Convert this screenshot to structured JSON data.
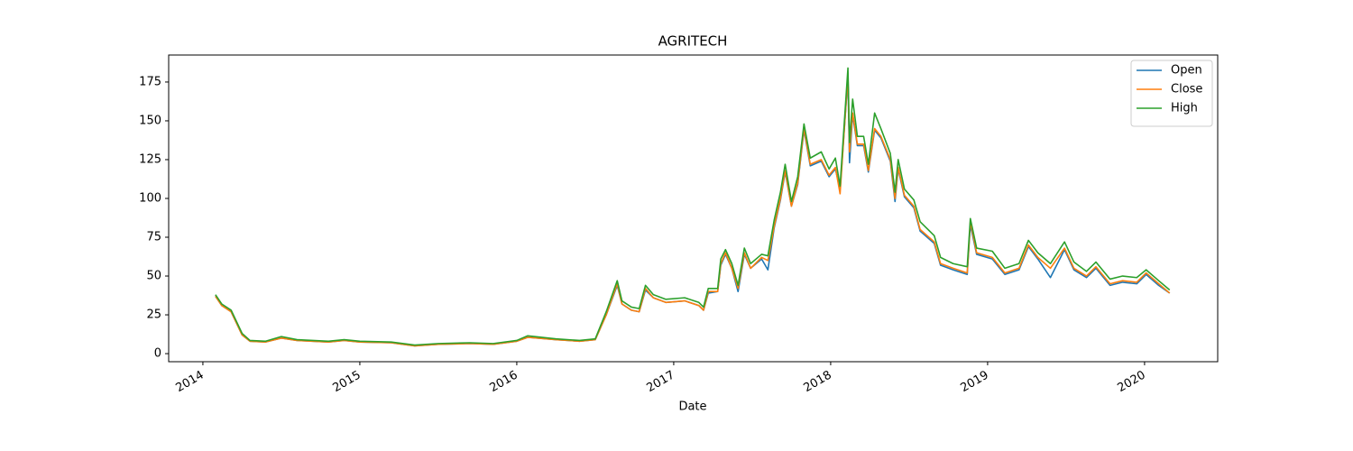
{
  "chart_data": {
    "type": "line",
    "title": "AGRITECH",
    "xlabel": "Date",
    "x": [
      2014.08,
      2014.12,
      2014.18,
      2014.25,
      2014.3,
      2014.4,
      2014.5,
      2014.6,
      2014.8,
      2014.9,
      2015.0,
      2015.2,
      2015.35,
      2015.5,
      2015.7,
      2015.85,
      2016.0,
      2016.07,
      2016.25,
      2016.4,
      2016.5,
      2016.57,
      2016.64,
      2016.67,
      2016.73,
      2016.78,
      2016.82,
      2016.87,
      2016.95,
      2017.07,
      2017.16,
      2017.19,
      2017.22,
      2017.28,
      2017.3,
      2017.33,
      2017.37,
      2017.41,
      2017.45,
      2017.49,
      2017.56,
      2017.6,
      2017.64,
      2017.68,
      2017.71,
      2017.75,
      2017.79,
      2017.83,
      2017.87,
      2017.94,
      2017.99,
      2018.03,
      2018.06,
      2018.11,
      2018.12,
      2018.14,
      2018.17,
      2018.21,
      2018.24,
      2018.28,
      2018.32,
      2018.38,
      2018.41,
      2018.43,
      2018.47,
      2018.53,
      2018.57,
      2018.66,
      2018.7,
      2018.78,
      2018.87,
      2018.89,
      2018.93,
      2019.03,
      2019.11,
      2019.2,
      2019.26,
      2019.32,
      2019.4,
      2019.49,
      2019.55,
      2019.63,
      2019.69,
      2019.78,
      2019.86,
      2019.95,
      2020.01,
      2020.09,
      2020.16
    ],
    "series": [
      {
        "name": "Open",
        "color": "#1f77b4",
        "values": [
          37,
          31,
          27,
          12,
          8,
          7.5,
          10,
          8.5,
          7.5,
          8.5,
          7.5,
          7,
          5,
          6,
          6.5,
          6,
          8,
          10.5,
          9,
          8,
          9,
          25,
          44,
          32,
          28,
          27,
          41,
          36,
          33,
          34,
          31,
          28,
          39,
          40,
          57,
          64,
          55,
          40,
          64,
          55,
          61,
          54,
          81,
          99,
          117,
          95,
          109,
          144,
          121,
          124,
          114,
          119,
          106,
          178,
          123,
          154,
          134,
          134,
          117,
          144,
          139,
          124,
          98,
          119,
          101,
          94,
          79,
          71,
          57,
          54,
          51,
          83,
          64,
          61,
          51,
          54,
          69,
          61,
          49,
          67,
          54,
          49,
          55,
          44,
          46,
          45,
          51,
          44,
          39
        ]
      },
      {
        "name": "Close",
        "color": "#ff7f0e",
        "values": [
          37,
          31,
          27,
          12,
          8,
          7.5,
          10,
          8.5,
          7.5,
          8.5,
          7.5,
          7,
          5,
          6,
          6.5,
          6,
          8,
          10.5,
          9,
          8,
          9,
          25,
          45,
          32,
          28,
          27,
          42,
          36,
          33,
          34,
          31,
          28,
          40,
          40,
          58,
          65,
          55,
          42,
          65,
          55,
          62,
          60,
          82,
          100,
          118,
          95,
          110,
          145,
          122,
          125,
          115,
          120,
          103,
          180,
          130,
          155,
          135,
          135,
          118,
          145,
          140,
          125,
          100,
          120,
          102,
          95,
          80,
          72,
          58,
          55,
          52,
          85,
          65,
          62,
          52,
          55,
          70,
          62,
          55,
          68,
          55,
          50,
          56,
          45,
          47,
          46,
          52,
          45,
          39
        ]
      },
      {
        "name": "High",
        "color": "#2ca02c",
        "values": [
          38,
          32,
          28,
          13,
          8.5,
          8,
          11,
          9,
          8,
          9,
          8,
          7.5,
          5.5,
          6.5,
          7,
          6.5,
          8.5,
          11.5,
          9.5,
          8.5,
          9.5,
          27,
          47,
          34,
          30,
          29,
          44,
          38,
          35,
          36,
          33,
          30,
          42,
          42,
          61,
          67,
          58,
          44,
          68,
          58,
          64,
          63,
          86,
          104,
          122,
          98,
          114,
          148,
          126,
          130,
          119,
          126,
          108,
          184,
          136,
          164,
          140,
          140,
          122,
          155,
          145,
          129,
          104,
          125,
          106,
          99,
          85,
          76,
          62,
          58,
          56,
          87,
          68,
          66,
          55,
          58,
          73,
          65,
          58,
          72,
          59,
          53,
          59,
          48,
          50,
          49,
          54,
          47,
          41
        ]
      }
    ],
    "xlim": [
      2013.782,
      2020.466
    ],
    "xticks": [
      2014,
      2015,
      2016,
      2017,
      2018,
      2019,
      2020
    ],
    "ylim": [
      -5.2,
      192.4
    ],
    "yticks": [
      0,
      25,
      50,
      75,
      100,
      125,
      150,
      175
    ],
    "grid": false,
    "legend": "upper right"
  }
}
